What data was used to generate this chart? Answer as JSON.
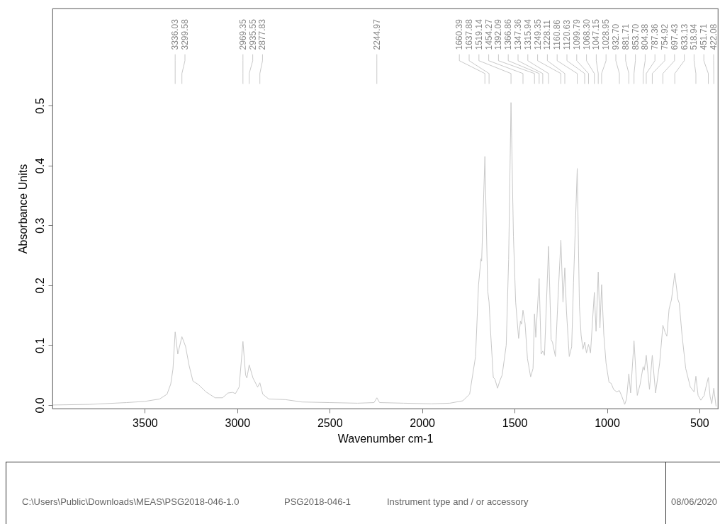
{
  "chart_data": {
    "type": "line",
    "xlabel": "Wavenumber cm-1",
    "ylabel": "Absorbance Units",
    "xlim": [
      4000,
      400
    ],
    "ylim": [
      -0.006,
      0.662
    ],
    "xticks": [
      3500,
      3000,
      2500,
      2000,
      1500,
      1000,
      500
    ],
    "yticks": [
      {
        "value": 0,
        "label": "0.0"
      },
      0.1,
      0.2,
      0.3,
      0.4,
      0.5
    ],
    "x": [
      3996,
      3800,
      3600,
      3500,
      3420,
      3380,
      3360,
      3348,
      3336.03,
      3322,
      3299.58,
      3280,
      3260,
      3240,
      3210,
      3170,
      3120,
      3080,
      3050,
      3025,
      3010,
      2990,
      2969.35,
      2955,
      2948,
      2935.55,
      2915,
      2890,
      2877.83,
      2862,
      2830,
      2740,
      2650,
      2500,
      2350,
      2260,
      2244.97,
      2230,
      2100,
      1950,
      1850,
      1780,
      1743,
      1711,
      1695,
      1682,
      1678,
      1660.39,
      1645,
      1637.88,
      1630,
      1615,
      1606,
      1592,
      1580,
      1567,
      1545,
      1532,
      1519.14,
      1506,
      1494,
      1478,
      1468,
      1462,
      1454.27,
      1443,
      1430,
      1413,
      1400,
      1392.09,
      1385,
      1366.86,
      1356,
      1347.36,
      1338,
      1315.94,
      1302,
      1295,
      1279,
      1264,
      1249.35,
      1238,
      1228.11,
      1219,
      1204,
      1191,
      1181,
      1160.86,
      1149,
      1140,
      1130,
      1120.63,
      1111,
      1099.79,
      1089,
      1068.3,
      1059,
      1047.15,
      1038,
      1028.95,
      1017,
      1005,
      989,
      977,
      964,
      948,
      932.7,
      919,
      904,
      894,
      881.71,
      872,
      853.7,
      836,
      821,
      804.38,
      798,
      787.36,
      770,
      754.92,
      737,
      715,
      697.43,
      685,
      676,
      664,
      651,
      633.13,
      616,
      609,
      594,
      574,
      549,
      529,
      518.94,
      507,
      492,
      474,
      466,
      451.71,
      442,
      433,
      422.08,
      410
    ],
    "series": [
      {
        "color": "#c8c8c8",
        "values": [
          0.0,
          0.001,
          0.004,
          0.006,
          0.01,
          0.018,
          0.035,
          0.06,
          0.122,
          0.085,
          0.114,
          0.098,
          0.065,
          0.04,
          0.034,
          0.022,
          0.012,
          0.012,
          0.02,
          0.021,
          0.019,
          0.03,
          0.106,
          0.05,
          0.045,
          0.067,
          0.045,
          0.03,
          0.037,
          0.018,
          0.01,
          0.009,
          0.005,
          0.004,
          0.003,
          0.004,
          0.012,
          0.004,
          0.003,
          0.002,
          0.003,
          0.007,
          0.018,
          0.081,
          0.2,
          0.244,
          0.24,
          0.415,
          0.19,
          0.172,
          0.124,
          0.046,
          0.043,
          0.028,
          0.04,
          0.05,
          0.1,
          0.243,
          0.505,
          0.282,
          0.172,
          0.111,
          0.14,
          0.135,
          0.158,
          0.136,
          0.077,
          0.047,
          0.061,
          0.152,
          0.113,
          0.211,
          0.085,
          0.09,
          0.083,
          0.265,
          0.109,
          0.105,
          0.081,
          0.184,
          0.275,
          0.172,
          0.229,
          0.156,
          0.081,
          0.097,
          0.204,
          0.395,
          0.164,
          0.117,
          0.093,
          0.105,
          0.087,
          0.101,
          0.087,
          0.188,
          0.123,
          0.222,
          0.129,
          0.201,
          0.117,
          0.07,
          0.038,
          0.036,
          0.026,
          0.022,
          0.024,
          0.014,
          0.001,
          0.01,
          0.052,
          0.02,
          0.107,
          0.016,
          0.034,
          0.064,
          0.058,
          0.083,
          0.026,
          0.083,
          0.02,
          0.07,
          0.133,
          0.121,
          0.115,
          0.16,
          0.176,
          0.22,
          0.176,
          0.17,
          0.117,
          0.061,
          0.03,
          0.022,
          0.048,
          0.016,
          0.008,
          0.016,
          0.028,
          0.046,
          0.014,
          0.002,
          0.028,
          -0.002
        ]
      }
    ],
    "annotations": [
      {
        "text": "3336.03",
        "x": 3336.03
      },
      {
        "text": "3299.58",
        "x": 3299.58
      },
      {
        "text": "2969.35",
        "x": 2969.35
      },
      {
        "text": "2935.55",
        "x": 2935.55
      },
      {
        "text": "2877.83",
        "x": 2877.83
      },
      {
        "text": "2244.97",
        "x": 2244.97
      },
      {
        "text": "1660.39",
        "x": 1660.39
      },
      {
        "text": "1637.88",
        "x": 1637.88
      },
      {
        "text": "1519.14",
        "x": 1519.14
      },
      {
        "text": "1454.27",
        "x": 1454.27
      },
      {
        "text": "1392.09",
        "x": 1392.09
      },
      {
        "text": "1366.86",
        "x": 1366.86
      },
      {
        "text": "1347.36",
        "x": 1347.36
      },
      {
        "text": "1315.94",
        "x": 1315.94
      },
      {
        "text": "1249.35",
        "x": 1249.35
      },
      {
        "text": "1228.11",
        "x": 1228.11
      },
      {
        "text": "1160.86",
        "x": 1160.86
      },
      {
        "text": "1120.63",
        "x": 1120.63
      },
      {
        "text": "1099.79",
        "x": 1099.79
      },
      {
        "text": "1068.30",
        "x": 1068.3
      },
      {
        "text": "1047.15",
        "x": 1047.15
      },
      {
        "text": "1028.95",
        "x": 1028.95
      },
      {
        "text": "932.70",
        "x": 932.7
      },
      {
        "text": "881.71",
        "x": 881.71
      },
      {
        "text": "853.70",
        "x": 853.7
      },
      {
        "text": "804.38",
        "x": 804.38
      },
      {
        "text": "787.36",
        "x": 787.36
      },
      {
        "text": "754.92",
        "x": 754.92
      },
      {
        "text": "697.43",
        "x": 697.43
      },
      {
        "text": "633.13",
        "x": 633.13
      },
      {
        "text": "518.94",
        "x": 518.94
      },
      {
        "text": "451.71",
        "x": 451.71
      },
      {
        "text": "422.08",
        "x": 422.08
      },
      "C:\\Users\\Public\\Downloads\\MEAS\\PSG2018-046-1.0",
      "PSG2018-046-1",
      "Instrument type and / or accessory",
      "08/06/2020"
    ]
  }
}
